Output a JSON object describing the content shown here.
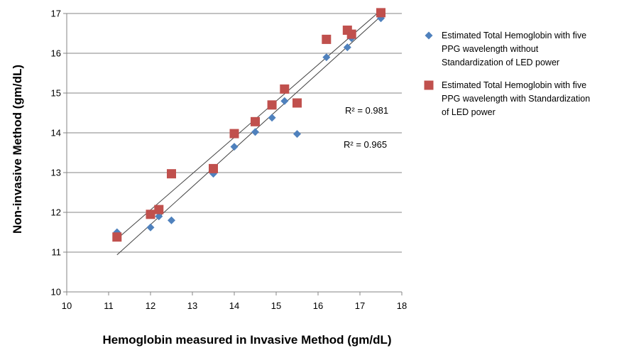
{
  "chart_data": {
    "type": "scatter",
    "xlabel": "Hemoglobin measured in Invasive Method (gm/dL)",
    "ylabel": "Non-invasive Method (gm/dL)",
    "xlim": [
      10,
      18
    ],
    "ylim": [
      10,
      17
    ],
    "x_ticks": [
      "10",
      "11",
      "12",
      "13",
      "14",
      "15",
      "16",
      "17",
      "18"
    ],
    "y_ticks": [
      "10",
      "11",
      "12",
      "13",
      "14",
      "15",
      "16",
      "17"
    ],
    "grid": "horizontal",
    "legend_position": "right",
    "series": [
      {
        "name": "Estimated Total Hemoglobin with five PPG wavelength without Standardization of LED power",
        "legend_lines": [
          "Estimated Total Hemoglobin with five",
          "PPG wavelength without",
          "Standardization of LED power"
        ],
        "marker": "diamond",
        "color": "#4f81bd",
        "points": [
          [
            11.2,
            11.5
          ],
          [
            12.0,
            11.62
          ],
          [
            12.2,
            11.9
          ],
          [
            12.5,
            11.8
          ],
          [
            13.5,
            12.97
          ],
          [
            14.0,
            13.65
          ],
          [
            14.5,
            14.02
          ],
          [
            14.9,
            14.38
          ],
          [
            15.2,
            14.8
          ],
          [
            15.5,
            13.97
          ],
          [
            16.2,
            15.9
          ],
          [
            16.7,
            16.15
          ],
          [
            16.8,
            16.38
          ],
          [
            17.5,
            16.88
          ]
        ],
        "trendline": {
          "x": [
            11.2,
            17.5
          ],
          "y": [
            10.93,
            16.93
          ]
        },
        "r2_label": "R² = 0.965"
      },
      {
        "name": "Estimated Total Hemoglobin with five PPG wavelength with Standardization of LED power",
        "legend_lines": [
          "Estimated Total Hemoglobin with five",
          "PPG wavelength with Standardization",
          "of LED power"
        ],
        "marker": "square",
        "color": "#c0504d",
        "points": [
          [
            11.2,
            11.38
          ],
          [
            12.0,
            11.95
          ],
          [
            12.2,
            12.07
          ],
          [
            12.5,
            12.97
          ],
          [
            13.5,
            13.1
          ],
          [
            14.0,
            13.98
          ],
          [
            14.5,
            14.28
          ],
          [
            14.9,
            14.7
          ],
          [
            15.2,
            15.1
          ],
          [
            15.5,
            14.75
          ],
          [
            16.2,
            16.35
          ],
          [
            16.7,
            16.58
          ],
          [
            16.8,
            16.48
          ],
          [
            17.5,
            17.02
          ]
        ],
        "trendline": {
          "x": [
            11.2,
            17.5
          ],
          "y": [
            11.33,
            17.08
          ]
        },
        "r2_label": "R² = 0.981"
      }
    ]
  }
}
